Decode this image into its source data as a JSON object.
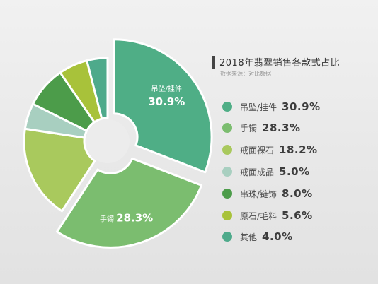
{
  "chart_data": {
    "type": "pie",
    "title": "2018年翡翠销售各款式占比",
    "subtitle": "数据来源：对比数据",
    "categories": [
      "吊坠/挂件",
      "手镯",
      "戒面裸石",
      "戒面成品",
      "串珠/链饰",
      "原石/毛料",
      "其他"
    ],
    "values": [
      30.9,
      28.3,
      18.2,
      5.0,
      8.0,
      5.6,
      4.0
    ],
    "value_labels": [
      "30.9%",
      "28.3%",
      "18.2%",
      "5.0%",
      "8.0%",
      "5.6%",
      "4.0%"
    ],
    "colors": [
      "#4fae86",
      "#7bbd6f",
      "#a9c95d",
      "#a8cfc0",
      "#4c9c4a",
      "#a8c23a",
      "#4eaa8b"
    ],
    "exploded": [
      "吊坠/挂件",
      "手镯"
    ],
    "legend_position": "right",
    "donut": true
  }
}
